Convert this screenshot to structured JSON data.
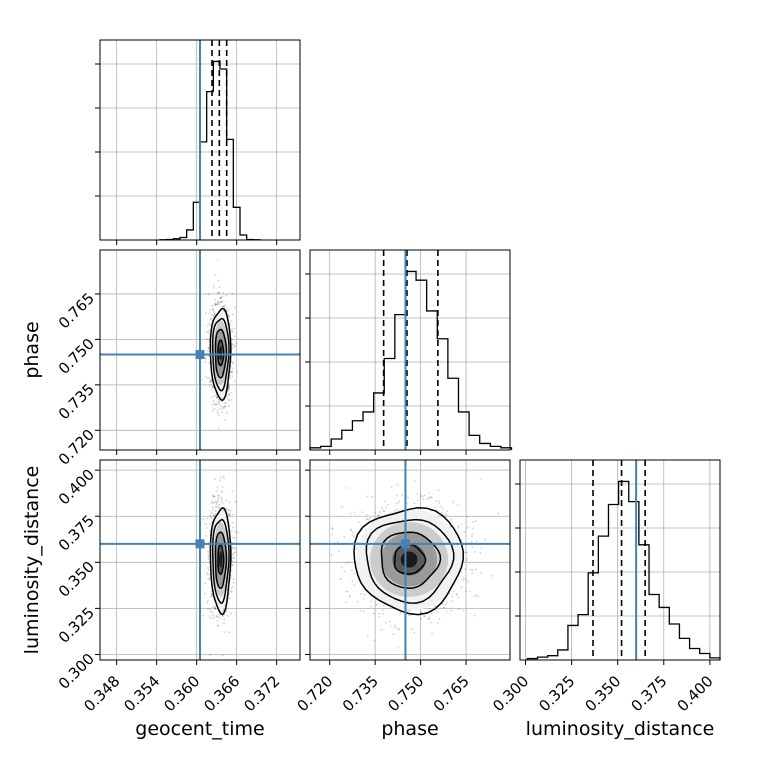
{
  "chart_data": {
    "type": "corner",
    "parameters": [
      "geocent_time",
      "phase",
      "luminosity_distance"
    ],
    "truths": {
      "geocent_time": 0.3605,
      "phase": 0.745,
      "luminosity_distance": 0.36
    },
    "truth_color": "#4682b4",
    "quantiles": {
      "geocent_time": [
        0.3623,
        0.3634,
        0.3645
      ],
      "phase": [
        0.7378,
        0.7455,
        0.7557
      ],
      "luminosity_distance": [
        0.3366,
        0.3521,
        0.3649
      ]
    },
    "ranges": {
      "geocent_time": [
        0.3455,
        0.3755
      ],
      "phase": [
        0.7135,
        0.7795
      ],
      "luminosity_distance": [
        0.297,
        0.4055
      ]
    },
    "ticks": {
      "geocent_time": [
        "0.348",
        "0.354",
        "0.360",
        "0.366",
        "0.372"
      ],
      "phase": [
        "0.720",
        "0.735",
        "0.750",
        "0.765"
      ],
      "luminosity_distance": [
        "0.300",
        "0.325",
        "0.350",
        "0.375",
        "0.400"
      ]
    },
    "hist1d": {
      "geocent_time": {
        "edges": [
          0.3545,
          0.3555,
          0.3565,
          0.3575,
          0.3585,
          0.3595,
          0.3605,
          0.3615,
          0.3625,
          0.3635,
          0.3645,
          0.3655,
          0.3665,
          0.3675,
          0.3685,
          0.3695
        ],
        "counts": [
          1,
          2,
          5,
          10,
          40,
          150,
          390,
          590,
          710,
          680,
          400,
          130,
          20,
          2,
          1
        ]
      },
      "phase": {
        "edges": [
          0.7135,
          0.717,
          0.7205,
          0.724,
          0.7275,
          0.731,
          0.7345,
          0.738,
          0.7415,
          0.745,
          0.7485,
          0.752,
          0.7555,
          0.759,
          0.7625,
          0.766,
          0.7695,
          0.773,
          0.7765,
          0.78
        ],
        "counts": [
          3,
          5,
          15,
          27,
          40,
          52,
          78,
          125,
          185,
          244,
          232,
          190,
          152,
          98,
          52,
          20,
          9,
          5,
          3
        ]
      },
      "luminosity_distance": {
        "edges": [
          0.301,
          0.3065,
          0.312,
          0.3175,
          0.323,
          0.3285,
          0.334,
          0.3395,
          0.345,
          0.3505,
          0.356,
          0.3615,
          0.367,
          0.3725,
          0.378,
          0.3835,
          0.389,
          0.3945,
          0.4,
          0.4055
        ],
        "counts": [
          2,
          4,
          6,
          14,
          48,
          63,
          121,
          172,
          216,
          248,
          220,
          160,
          91,
          73,
          50,
          30,
          16,
          9,
          3
        ]
      }
    },
    "hist2d": [
      {
        "x": "geocent_time",
        "y": "phase",
        "mean": [
          0.3636,
          0.7455
        ],
        "sd": [
          0.00078,
          0.0076
        ]
      },
      {
        "x": "geocent_time",
        "y": "luminosity_distance",
        "mean": [
          0.3636,
          0.3515
        ],
        "sd": [
          0.00078,
          0.0145
        ]
      },
      {
        "x": "phase",
        "y": "luminosity_distance",
        "mean": [
          0.7462,
          0.3515
        ],
        "sd": [
          0.0092,
          0.0145
        ]
      }
    ],
    "grid": true
  }
}
